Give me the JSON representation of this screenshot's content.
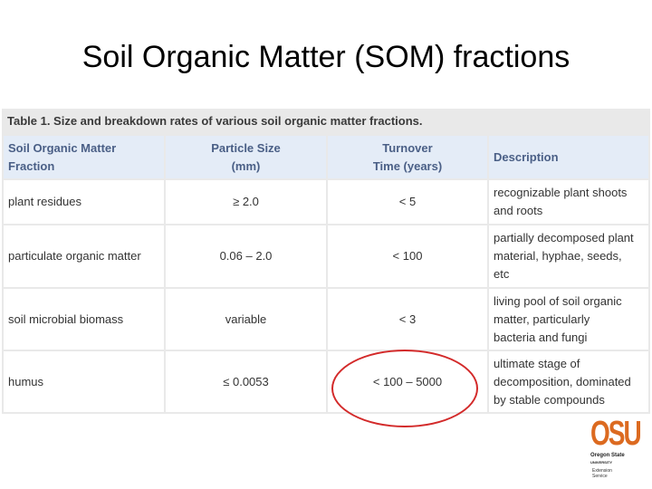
{
  "slide": {
    "title": "Soil Organic Matter (SOM) fractions"
  },
  "table": {
    "caption": "Table 1. Size and breakdown rates of various soil organic matter fractions.",
    "headers": {
      "fraction": [
        "Soil Organic Matter",
        "Fraction"
      ],
      "size": [
        "Particle Size",
        "(mm)"
      ],
      "turnover": [
        "Turnover",
        "Time (years)"
      ],
      "description": "Description"
    },
    "rows": [
      {
        "fraction": "plant residues",
        "size": "≥ 2.0",
        "turnover": "< 5",
        "description": [
          "recognizable plant shoots",
          "and roots"
        ]
      },
      {
        "fraction": "particulate organic matter",
        "size": "0.06 – 2.0",
        "turnover": "< 100",
        "description": [
          "partially decomposed plant",
          "material, hyphae, seeds,",
          "etc"
        ]
      },
      {
        "fraction": "soil microbial biomass",
        "size": "variable",
        "turnover": "< 3",
        "description": [
          "living pool of soil organic",
          "matter, particularly",
          "bacteria and fungi"
        ]
      },
      {
        "fraction": "humus",
        "size": "≤ 0.0053",
        "turnover": "< 100 – 5000",
        "description": [
          "ultimate stage of",
          "decomposition, dominated",
          "by stable compounds"
        ]
      }
    ]
  },
  "highlight": {
    "color": "#d32a2a"
  },
  "logo": {
    "mark": "OSU",
    "line1": "Oregon State",
    "line2": "UNIVERSITY",
    "line3": "Extension Service",
    "color": "#dc6a20"
  }
}
